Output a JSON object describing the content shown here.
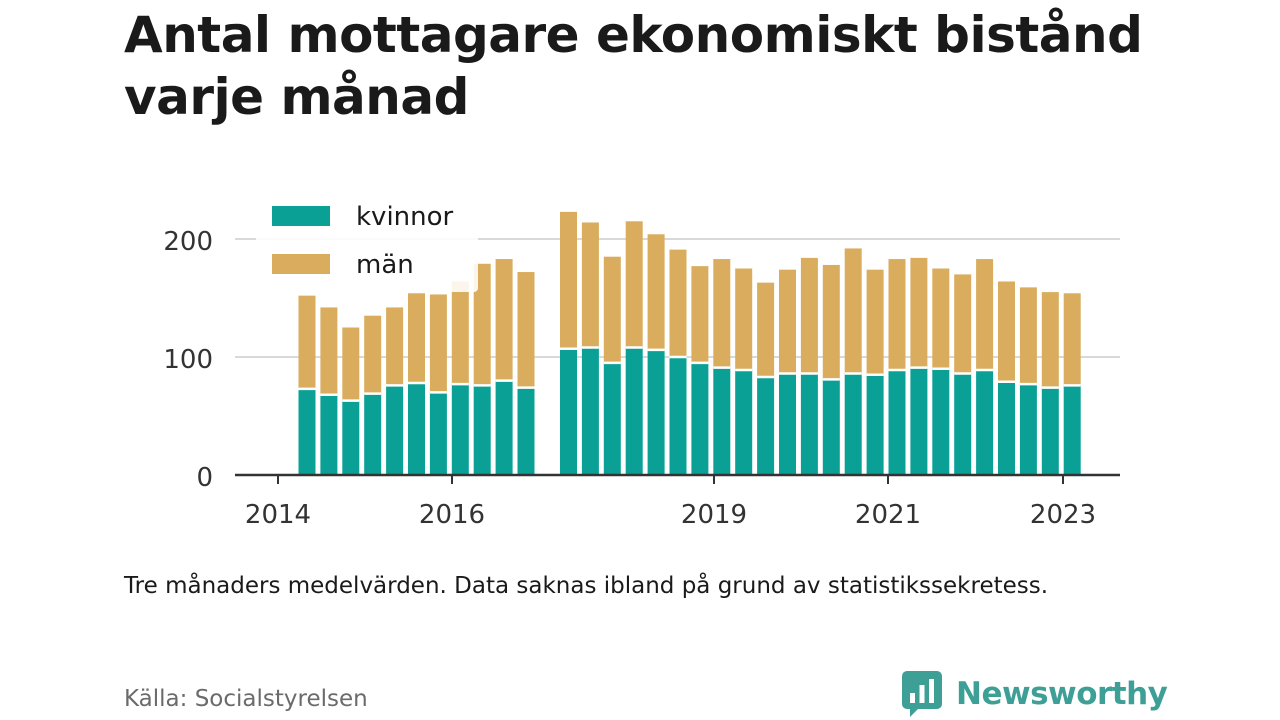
{
  "title": "Antal mottagare ekonomiskt bistånd varje månad",
  "note": "Tre månaders medelvärden. Data saknas ibland på grund av statistikssekretess.",
  "source": "Källa: Socialstyrelsen",
  "brand": "Newsworthy",
  "brand_icon": "newsworthy-logo-icon",
  "colors": {
    "kvinnor": "#0aa096",
    "man": "#d9ad5d",
    "grid": "#d9d9d9",
    "axis": "#333333"
  },
  "chart_data": {
    "type": "bar",
    "stacked": true,
    "x_ticks": [
      "2014",
      "2016",
      "2019",
      "2021",
      "2023"
    ],
    "y_ticks": [
      "0",
      "100",
      "200"
    ],
    "ylim": [
      0,
      230
    ],
    "grid": true,
    "legend": {
      "position": "top-left",
      "entries": [
        "kvinnor",
        "män"
      ]
    },
    "groups": [
      {
        "kvinnor": [
          73,
          68,
          63,
          69,
          76,
          78,
          70,
          77,
          76,
          80,
          74
        ],
        "män": [
          79,
          74,
          62,
          66,
          66,
          76,
          83,
          87,
          103,
          103,
          98
        ]
      },
      {
        "kvinnor": [
          107,
          108,
          95,
          108,
          106,
          100,
          95,
          91,
          89,
          83,
          86,
          86,
          81,
          86,
          85,
          89,
          91,
          90,
          86,
          89,
          79,
          77,
          74,
          76
        ],
        "män": [
          116,
          106,
          90,
          107,
          98,
          91,
          82,
          92,
          86,
          80,
          88,
          98,
          97,
          106,
          89,
          94,
          93,
          85,
          84,
          94,
          85,
          82,
          81,
          78
        ]
      }
    ],
    "series": [
      {
        "name": "kvinnor",
        "color": "#0aa096"
      },
      {
        "name": "män",
        "color": "#d9ad5d"
      }
    ]
  }
}
